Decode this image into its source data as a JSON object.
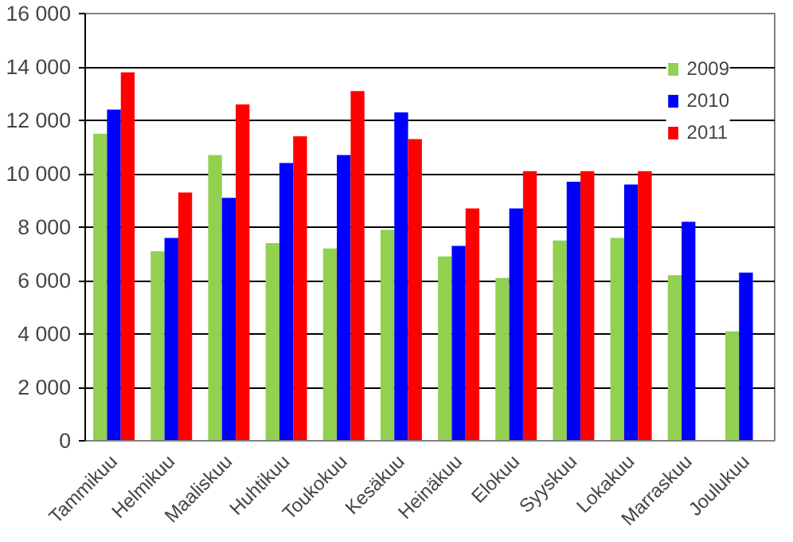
{
  "chart_data": {
    "type": "bar",
    "categories": [
      "Tammikuu",
      "Helmikuu",
      "Maaliskuu",
      "Huhtikuu",
      "Toukokuu",
      "Kesäkuu",
      "Heinäkuu",
      "Elokuu",
      "Syyskuu",
      "Lokakuu",
      "Marraskuu",
      "Joulukuu"
    ],
    "series": [
      {
        "name": "2009",
        "color": "#92d050",
        "values": [
          11500,
          7100,
          10700,
          7400,
          7200,
          7900,
          6900,
          6100,
          7500,
          7600,
          6200,
          4100
        ]
      },
      {
        "name": "2010",
        "color": "#0000ff",
        "values": [
          12400,
          7600,
          9100,
          10400,
          10700,
          12300,
          7300,
          8700,
          9700,
          9600,
          8200,
          6300
        ]
      },
      {
        "name": "2011",
        "color": "#ff0000",
        "values": [
          13800,
          9300,
          12600,
          11400,
          13100,
          11300,
          8700,
          10100,
          10100,
          10100,
          null,
          null
        ]
      }
    ],
    "ylim": [
      0,
      16000
    ],
    "yticks": [
      0,
      {
        "value": 2000,
        "label": "2 000"
      },
      {
        "value": 4000,
        "label": "4 000"
      },
      {
        "value": 6000,
        "label": "6 000"
      },
      {
        "value": 8000,
        "label": "8 000"
      },
      {
        "value": 10000,
        "label": "10 000"
      },
      {
        "value": 12000,
        "label": "12 000"
      },
      {
        "value": 14000,
        "label": "14 000"
      },
      {
        "value": 16000,
        "label": "16 000"
      }
    ],
    "grid": "y",
    "legend": "top right"
  }
}
